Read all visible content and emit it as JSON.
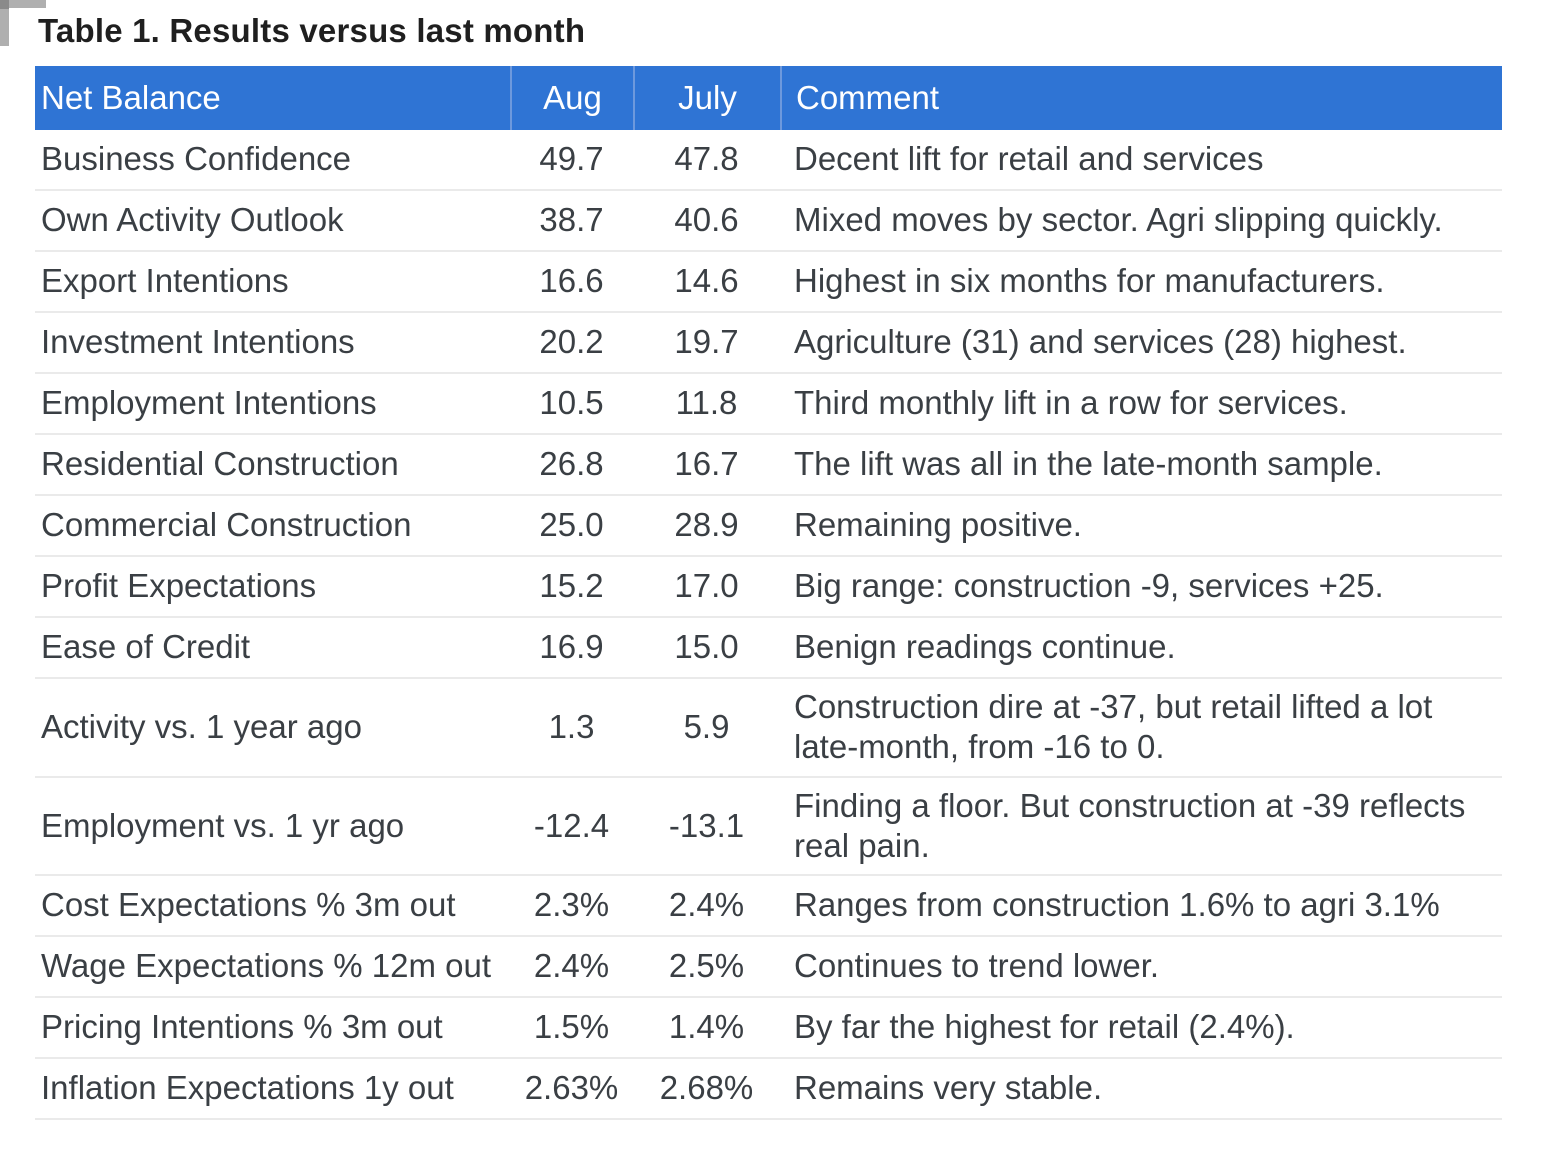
{
  "title": "Table 1. Results versus last month",
  "colors": {
    "header_bg": "#2F74D4",
    "header_text": "#FFFFFF",
    "header_divider": "#6D99DD",
    "body_text": "#3A3F44",
    "row_divider": "#EAEAEA",
    "title_text": "#1F1F1F"
  },
  "table": {
    "columns": [
      {
        "label": "Net Balance"
      },
      {
        "label": "Aug"
      },
      {
        "label": "July"
      },
      {
        "label": "Comment"
      }
    ],
    "rows": [
      {
        "label": "Business Confidence",
        "aug": "49.7",
        "july": "47.8",
        "comment": "Decent lift for retail and services"
      },
      {
        "label": "Own Activity Outlook",
        "aug": "38.7",
        "july": "40.6",
        "comment": "Mixed moves by sector. Agri slipping quickly."
      },
      {
        "label": "Export Intentions",
        "aug": "16.6",
        "july": "14.6",
        "comment": "Highest in six months for manufacturers."
      },
      {
        "label": "Investment Intentions",
        "aug": "20.2",
        "july": "19.7",
        "comment": "Agriculture (31) and services (28) highest."
      },
      {
        "label": "Employment Intentions",
        "aug": "10.5",
        "july": "11.8",
        "comment": "Third monthly lift in a row for services."
      },
      {
        "label": "Residential Construction",
        "aug": "26.8",
        "july": "16.7",
        "comment": "The lift was all in the late-month sample."
      },
      {
        "label": "Commercial Construction",
        "aug": "25.0",
        "july": "28.9",
        "comment": "Remaining positive."
      },
      {
        "label": "Profit Expectations",
        "aug": "15.2",
        "july": "17.0",
        "comment": "Big range: construction -9, services +25."
      },
      {
        "label": "Ease of Credit",
        "aug": "16.9",
        "july": "15.0",
        "comment": "Benign readings continue."
      },
      {
        "label": "Activity vs. 1 year ago",
        "aug": "1.3",
        "july": "5.9",
        "comment": "Construction dire at -37, but retail lifted a lot late-month, from -16 to 0."
      },
      {
        "label": "Employment vs. 1 yr ago",
        "aug": "-12.4",
        "july": "-13.1",
        "comment": "Finding a floor. But construction at -39 reflects real pain."
      },
      {
        "label": "Cost Expectations % 3m out",
        "aug": "2.3%",
        "july": "2.4%",
        "comment": "Ranges from construction 1.6% to agri 3.1%"
      },
      {
        "label": "Wage Expectations % 12m out",
        "aug": "2.4%",
        "july": "2.5%",
        "comment": "Continues to trend lower."
      },
      {
        "label": "Pricing Intentions % 3m out",
        "aug": "1.5%",
        "july": "1.4%",
        "comment": "By far the highest for retail (2.4%)."
      },
      {
        "label": "Inflation Expectations 1y out",
        "aug": "2.63%",
        "july": "2.68%",
        "comment": "Remains very stable."
      }
    ]
  }
}
